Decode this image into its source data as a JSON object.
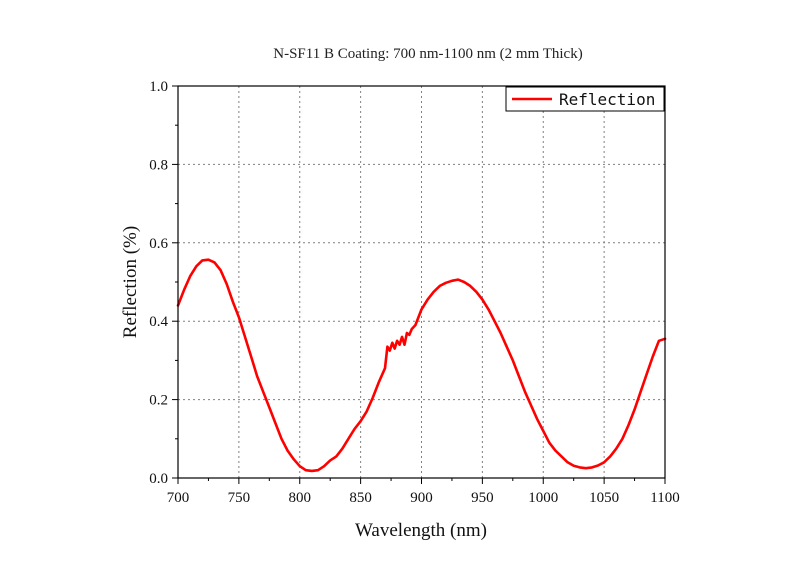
{
  "chart_data": {
    "type": "line",
    "title": "N-SF11 B Coating: 700 nm-1100 nm (2 mm Thick)",
    "xlabel": "Wavelength (nm)",
    "ylabel": "Reflection (%)",
    "xlim": [
      700,
      1100
    ],
    "ylim": [
      0,
      1.0
    ],
    "x_ticks": [
      "700",
      "750",
      "800",
      "850",
      "900",
      "950",
      "1000",
      "1050",
      "1100"
    ],
    "y_ticks": [
      "0.0",
      "0.2",
      "0.4",
      "0.6",
      "0.8",
      "1.0"
    ],
    "grid": true,
    "legend_position": "top-right",
    "series": [
      {
        "name": "Reflection",
        "color": "#ff0000",
        "x": [
          700,
          705,
          710,
          715,
          720,
          725,
          730,
          735,
          740,
          745,
          750,
          755,
          760,
          765,
          770,
          775,
          780,
          785,
          790,
          795,
          800,
          805,
          810,
          815,
          820,
          825,
          830,
          835,
          840,
          845,
          850,
          855,
          860,
          865,
          870,
          872,
          874,
          876,
          878,
          880,
          882,
          884,
          886,
          888,
          890,
          892,
          895,
          900,
          905,
          910,
          915,
          920,
          925,
          930,
          935,
          940,
          945,
          950,
          955,
          960,
          965,
          970,
          975,
          980,
          985,
          990,
          995,
          1000,
          1005,
          1010,
          1015,
          1020,
          1025,
          1030,
          1035,
          1040,
          1045,
          1050,
          1055,
          1060,
          1065,
          1070,
          1075,
          1080,
          1085,
          1090,
          1095,
          1100
        ],
        "y": [
          0.44,
          0.48,
          0.515,
          0.54,
          0.555,
          0.557,
          0.55,
          0.53,
          0.495,
          0.45,
          0.41,
          0.36,
          0.31,
          0.26,
          0.22,
          0.18,
          0.14,
          0.1,
          0.07,
          0.048,
          0.03,
          0.02,
          0.018,
          0.02,
          0.03,
          0.045,
          0.055,
          0.075,
          0.1,
          0.125,
          0.145,
          0.17,
          0.205,
          0.245,
          0.28,
          0.335,
          0.325,
          0.345,
          0.33,
          0.35,
          0.34,
          0.36,
          0.34,
          0.37,
          0.365,
          0.38,
          0.39,
          0.43,
          0.455,
          0.475,
          0.49,
          0.498,
          0.503,
          0.506,
          0.5,
          0.49,
          0.475,
          0.455,
          0.43,
          0.4,
          0.37,
          0.335,
          0.3,
          0.26,
          0.22,
          0.185,
          0.15,
          0.12,
          0.09,
          0.07,
          0.055,
          0.04,
          0.031,
          0.027,
          0.025,
          0.027,
          0.032,
          0.04,
          0.055,
          0.075,
          0.1,
          0.135,
          0.175,
          0.22,
          0.265,
          0.31,
          0.35,
          0.355
        ]
      }
    ]
  }
}
